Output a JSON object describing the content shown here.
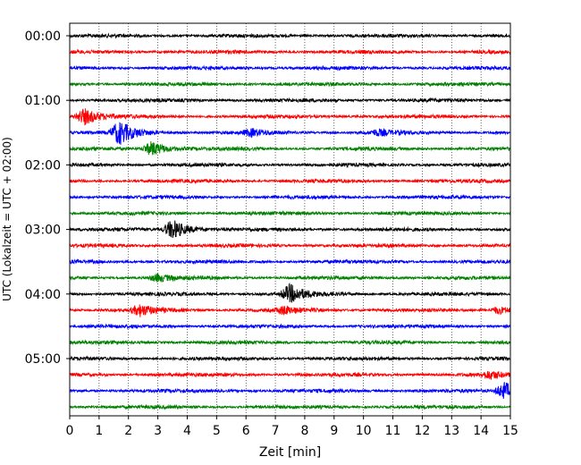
{
  "chart_data": {
    "type": "line",
    "title": "",
    "xlabel": "Zeit  [min]",
    "ylabel": "UTC (Lokalzeit = UTC + 02:00)",
    "xlim": [
      0,
      15
    ],
    "x_ticks": [
      "0",
      "1",
      "2",
      "3",
      "4",
      "5",
      "6",
      "7",
      "8",
      "9",
      "10",
      "11",
      "12",
      "13",
      "14",
      "15"
    ],
    "y_ticks": [
      "00:00",
      "01:00",
      "02:00",
      "03:00",
      "04:00",
      "05:00"
    ],
    "grid": "vertical dotted at each minute",
    "trace_interval_min": 15,
    "trace_colors": [
      "#000000",
      "#ff0000",
      "#0000ff",
      "#008000"
    ],
    "events": [
      {
        "trace_start": "01:15",
        "time_min": 0.5,
        "amplitude": 9
      },
      {
        "trace_start": "01:30",
        "time_min": 1.7,
        "amplitude": 13
      },
      {
        "trace_start": "01:30",
        "time_min": 6.2,
        "amplitude": 3.5
      },
      {
        "trace_start": "01:30",
        "time_min": 10.5,
        "amplitude": 3
      },
      {
        "trace_start": "01:45",
        "time_min": 2.8,
        "amplitude": 8
      },
      {
        "trace_start": "03:00",
        "time_min": 3.5,
        "amplitude": 11
      },
      {
        "trace_start": "03:45",
        "time_min": 3.0,
        "amplitude": 4
      },
      {
        "trace_start": "04:00",
        "time_min": 7.5,
        "amplitude": 10
      },
      {
        "trace_start": "04:15",
        "time_min": 2.4,
        "amplitude": 6
      },
      {
        "trace_start": "04:15",
        "time_min": 7.3,
        "amplitude": 4
      },
      {
        "trace_start": "04:15",
        "time_min": 14.6,
        "amplitude": 4
      },
      {
        "trace_start": "05:15",
        "time_min": 14.3,
        "amplitude": 4
      },
      {
        "trace_start": "05:30",
        "time_min": 14.8,
        "amplitude": 9
      }
    ]
  }
}
